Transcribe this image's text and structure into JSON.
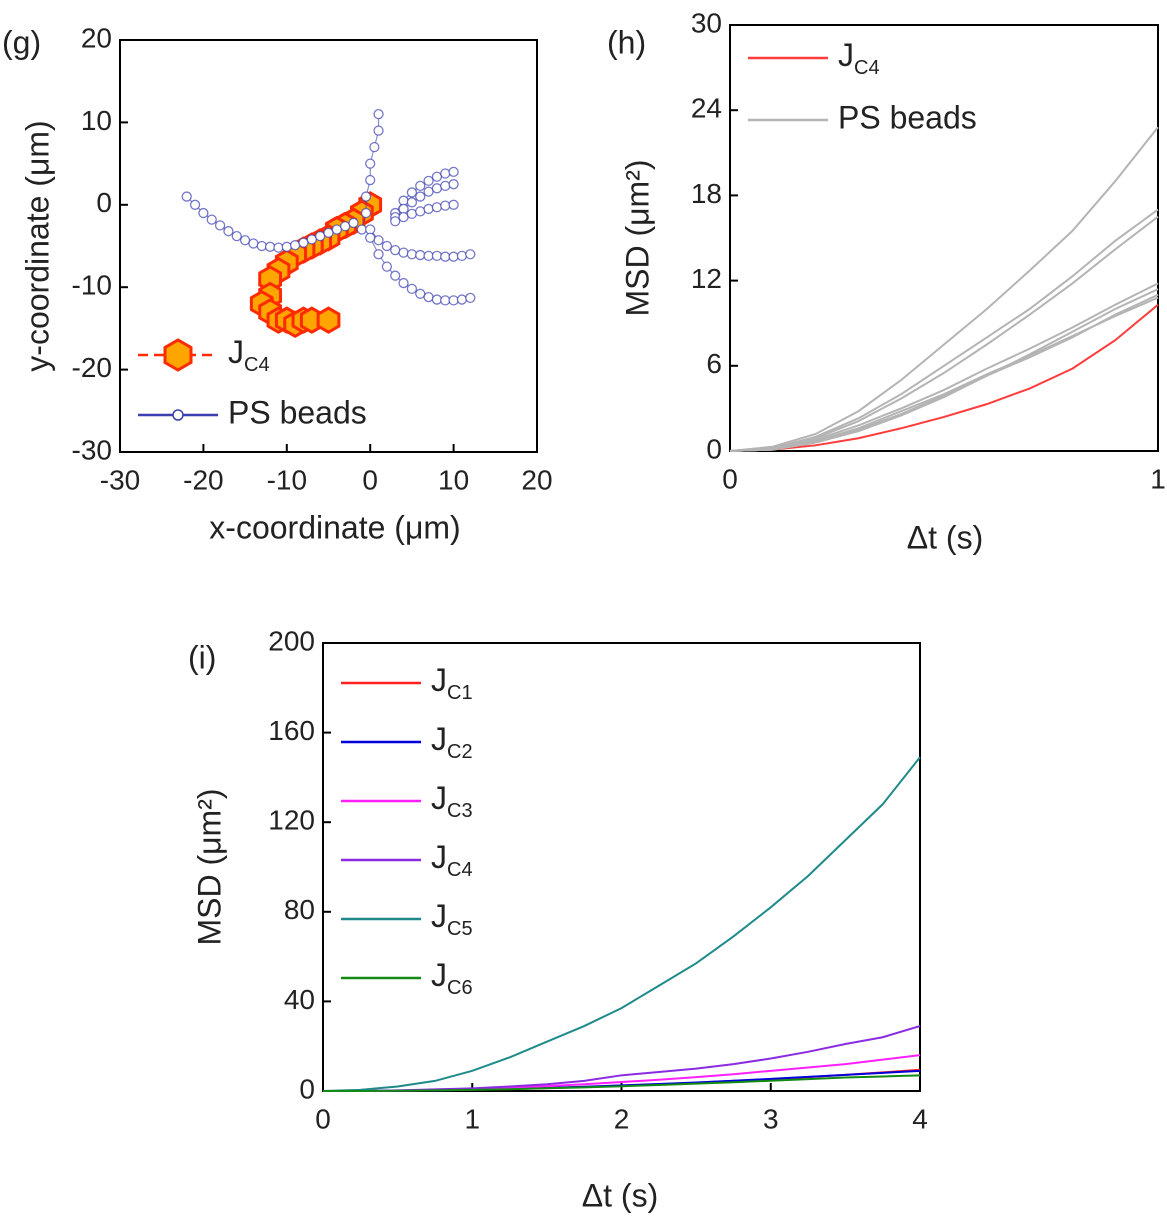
{
  "chart_data": [
    {
      "type": "scatter",
      "annotation": "(g)",
      "xlabel": "x-coordinate (μm)",
      "ylabel": "y-coordinate (μm)",
      "xlim": [
        -30,
        20
      ],
      "ylim": [
        -30,
        20
      ],
      "xticks": [
        -30,
        -20,
        -10,
        0,
        10,
        20
      ],
      "yticks": [
        -30,
        -20,
        -10,
        0,
        10,
        20
      ],
      "legend": "lower left",
      "series": [
        {
          "name": "JC4",
          "color": "#ff2a00",
          "marker": "hexagon",
          "x": [
            0,
            -1,
            -2,
            -3,
            -4,
            -5,
            -6,
            -7,
            -8,
            -9,
            -10,
            -11,
            -12,
            -12,
            -13,
            -12,
            -11,
            -10,
            -9,
            -8,
            -7,
            -5
          ],
          "values": [
            0,
            -1,
            -2,
            -2.5,
            -3,
            -4,
            -4.5,
            -5,
            -5.5,
            -6,
            -7,
            -8,
            -9,
            -11,
            -12,
            -13,
            -14,
            -14,
            -14.5,
            -14,
            -14,
            -14
          ]
        },
        {
          "name": "PS beads",
          "color": "#3b3fb0",
          "marker": "circle",
          "x": [
            -22,
            -21,
            -20,
            -19,
            -18,
            -17,
            -16,
            -15,
            -14,
            -13,
            -12,
            -11,
            -10,
            -9,
            -8,
            -7,
            -6,
            -5,
            -4,
            -3,
            -2,
            null,
            1,
            1,
            0.5,
            0,
            0,
            -0.5,
            -0.5,
            -1,
            null,
            0,
            1,
            2,
            3,
            4,
            5,
            6,
            7,
            8,
            9,
            10,
            11,
            12,
            null,
            0,
            1,
            2,
            3,
            4,
            5,
            6,
            7,
            8,
            9,
            10,
            11,
            12,
            null,
            3,
            4,
            5,
            6,
            7,
            8,
            9,
            10,
            null,
            3,
            4,
            5,
            6,
            7,
            8,
            9,
            10,
            null,
            3,
            4,
            5,
            6,
            7,
            8,
            9,
            10
          ],
          "values": [
            1,
            0,
            -1,
            -1.8,
            -2.5,
            -3.2,
            -3.8,
            -4.3,
            -4.7,
            -5,
            -5.1,
            -5.2,
            -5.1,
            -4.9,
            -4.6,
            -4.2,
            -3.8,
            -3.4,
            -3,
            -2.6,
            -2.2,
            null,
            11,
            9,
            7,
            5,
            3,
            1,
            -1,
            -3,
            null,
            -3,
            -4.3,
            -5,
            -5.5,
            -5.8,
            -6,
            -6.1,
            -6.2,
            -6.2,
            -6.3,
            -6.3,
            -6.2,
            -6,
            null,
            -4,
            -6,
            -7.5,
            -8.6,
            -9.5,
            -10.2,
            -10.8,
            -11.2,
            -11.5,
            -11.6,
            -11.6,
            -11.5,
            -11.3,
            null,
            -1,
            0.5,
            1.5,
            2.3,
            2.9,
            3.4,
            3.8,
            4,
            null,
            -1.5,
            -0.5,
            0.3,
            1,
            1.6,
            2,
            2.3,
            2.5,
            null,
            -2,
            -1.5,
            -1.1,
            -0.8,
            -0.5,
            -0.3,
            -0.1,
            0
          ]
        }
      ]
    },
    {
      "type": "line",
      "annotation": "(h)",
      "xlabel": "Δt (s)",
      "ylabel": "MSD (μm²)",
      "xlim": [
        0,
        1
      ],
      "ylim": [
        0,
        30
      ],
      "xticks": [
        0,
        1
      ],
      "yticks": [
        0,
        6,
        12,
        18,
        24,
        30
      ],
      "legend": "upper left",
      "x": [
        0,
        0.1,
        0.2,
        0.3,
        0.4,
        0.5,
        0.6,
        0.7,
        0.8,
        0.9,
        1
      ],
      "series": [
        {
          "name": "JC4",
          "color": "#ff3b3b",
          "values": [
            0,
            0.1,
            0.4,
            0.9,
            1.6,
            2.4,
            3.3,
            4.4,
            5.8,
            7.8,
            10.3
          ]
        },
        {
          "name": "PS beads",
          "color": "#b4b4b4",
          "values": [
            [
              0,
              0.3,
              1.2,
              2.8,
              5,
              7.5,
              10,
              12.7,
              15.5,
              19,
              22.8
            ],
            [
              0,
              0.2,
              1,
              2.3,
              4,
              6,
              8,
              10,
              12.3,
              14.8,
              17
            ],
            [
              0,
              0.2,
              0.9,
              2.1,
              3.7,
              5.5,
              7.5,
              9.6,
              11.8,
              14.2,
              16.5
            ],
            [
              0,
              0.2,
              0.8,
              1.8,
              3,
              4.3,
              5.8,
              7.2,
              8.7,
              10.3,
              11.8
            ],
            [
              0,
              0.1,
              0.6,
              1.4,
              2.5,
              3.8,
              5.3,
              6.8,
              8.4,
              10,
              11.4
            ],
            [
              0,
              0.1,
              0.6,
              1.5,
              2.6,
              3.9,
              5.3,
              6.6,
              8,
              9.6,
              11
            ],
            [
              0,
              0.1,
              0.7,
              1.6,
              2.8,
              4,
              5.4,
              6.7,
              8.1,
              9.5,
              10.8
            ]
          ]
        }
      ]
    },
    {
      "type": "line",
      "annotation": "(i)",
      "xlabel": "Δt (s)",
      "ylabel": "MSD (μm²)",
      "xlim": [
        0,
        4
      ],
      "ylim": [
        0,
        200
      ],
      "xticks": [
        0,
        1,
        2,
        3,
        4
      ],
      "yticks": [
        0,
        40,
        80,
        120,
        160,
        200
      ],
      "legend": "upper left",
      "x": [
        0,
        0.25,
        0.5,
        0.75,
        1,
        1.25,
        1.5,
        1.75,
        2,
        2.25,
        2.5,
        2.75,
        3,
        3.25,
        3.5,
        3.75,
        4
      ],
      "series": [
        {
          "name": "JC1",
          "color": "#ff2020",
          "values": [
            0,
            0,
            0.1,
            0.3,
            0.6,
            0.9,
            1.3,
            1.8,
            2.4,
            3,
            3.7,
            4.5,
            5.3,
            6.2,
            7.2,
            8.3,
            9.5
          ]
        },
        {
          "name": "JC2",
          "color": "#0000dd",
          "values": [
            0,
            0,
            0.1,
            0.3,
            0.6,
            1,
            1.4,
            1.9,
            2.5,
            3.1,
            3.8,
            4.6,
            5.4,
            6.3,
            7.2,
            8.1,
            9
          ]
        },
        {
          "name": "JC3",
          "color": "#ff20ff",
          "values": [
            0,
            0,
            0.2,
            0.5,
            1,
            1.5,
            2.2,
            3,
            4,
            5,
            6.2,
            7.5,
            9,
            10.5,
            12,
            14,
            16
          ]
        },
        {
          "name": "JC4",
          "color": "#8a2be2",
          "values": [
            0,
            0,
            0.3,
            0.7,
            1.2,
            2,
            3,
            4.5,
            7,
            8.5,
            10,
            12,
            14.5,
            17.5,
            21,
            24,
            29
          ]
        },
        {
          "name": "JC5",
          "color": "#1f8a8a",
          "values": [
            0,
            0.5,
            2,
            4.5,
            9,
            15,
            22,
            29,
            37,
            47,
            57,
            69,
            82,
            96,
            112,
            128,
            149
          ]
        },
        {
          "name": "JC6",
          "color": "#138a13",
          "values": [
            0,
            0,
            0.1,
            0.3,
            0.5,
            0.8,
            1.2,
            1.6,
            2.1,
            2.7,
            3.3,
            3.9,
            4.6,
            5.3,
            6,
            6.5,
            7
          ]
        }
      ]
    }
  ]
}
